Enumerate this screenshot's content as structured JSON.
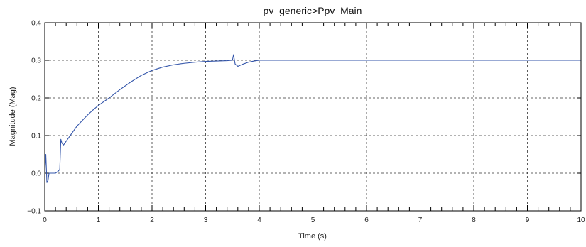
{
  "chart_data": {
    "type": "line",
    "title": "pv_generic>Ppv_Main",
    "xlabel": "Time (s)",
    "ylabel": "Magnitude (Mag)",
    "xlim": [
      0,
      10
    ],
    "ylim": [
      -0.1,
      0.4
    ],
    "x_ticks": [
      0,
      1,
      2,
      3,
      4,
      5,
      6,
      7,
      8,
      9,
      10
    ],
    "x_tick_labels": [
      "0",
      "1",
      "2",
      "3",
      "4",
      "5",
      "6",
      "7",
      "8",
      "9",
      "10"
    ],
    "y_ticks": [
      -0.1,
      0.0,
      0.1,
      0.2,
      0.3,
      0.4
    ],
    "y_tick_labels": [
      "−0.1",
      "0.0",
      "0.1",
      "0.2",
      "0.3",
      "0.4"
    ],
    "grid": true,
    "legend": "none",
    "series": [
      {
        "color": "#3355aa",
        "x": [
          0.0,
          0.02,
          0.04,
          0.06,
          0.08,
          0.1,
          0.15,
          0.2,
          0.25,
          0.28,
          0.3,
          0.32,
          0.35,
          0.4,
          0.5,
          0.6,
          0.7,
          0.8,
          0.9,
          1.0,
          1.2,
          1.4,
          1.6,
          1.8,
          2.0,
          2.2,
          2.4,
          2.6,
          2.8,
          3.0,
          3.2,
          3.4,
          3.5,
          3.52,
          3.55,
          3.6,
          3.7,
          3.8,
          3.9,
          4.0,
          4.2,
          4.5,
          5.0,
          5.5,
          6.0,
          6.5,
          7.0,
          7.5,
          8.0,
          8.5,
          9.0,
          9.5,
          10.0
        ],
        "y": [
          0.0,
          0.05,
          -0.025,
          -0.02,
          0.0,
          0.0,
          0.0,
          0.0,
          0.005,
          0.01,
          0.09,
          0.08,
          0.075,
          0.085,
          0.105,
          0.125,
          0.14,
          0.155,
          0.168,
          0.18,
          0.2,
          0.222,
          0.242,
          0.26,
          0.273,
          0.282,
          0.288,
          0.292,
          0.295,
          0.297,
          0.298,
          0.299,
          0.3,
          0.315,
          0.29,
          0.284,
          0.29,
          0.295,
          0.298,
          0.3,
          0.3,
          0.3,
          0.3,
          0.3,
          0.3,
          0.3,
          0.3,
          0.3,
          0.3,
          0.3,
          0.3,
          0.3,
          0.3
        ]
      }
    ]
  }
}
